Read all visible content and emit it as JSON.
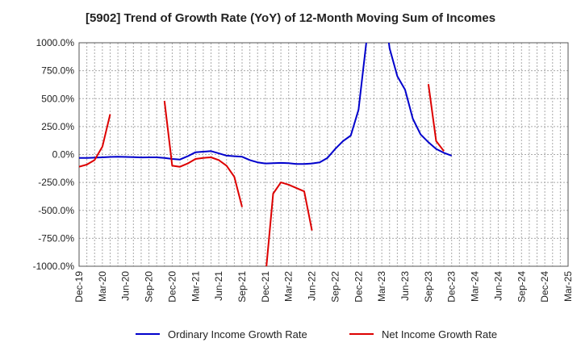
{
  "chart_data": {
    "type": "line",
    "title": "[5902]  Trend of Growth Rate (YoY) of 12-Month Moving Sum of Incomes",
    "xlabel": "",
    "ylabel": "",
    "ylim": [
      -1000,
      1000
    ],
    "yticks": [
      1000,
      750,
      500,
      250,
      0,
      -250,
      -500,
      -750,
      -1000
    ],
    "ytick_labels": [
      "1000.0%",
      "750.0%",
      "500.0%",
      "250.0%",
      "0.0%",
      "-250.0%",
      "-500.0%",
      "-750.0%",
      "-1000.0%"
    ],
    "xtick_labels": [
      "Dec-19",
      "Mar-20",
      "Jun-20",
      "Sep-20",
      "Dec-20",
      "Mar-21",
      "Jun-21",
      "Sep-21",
      "Dec-21",
      "Mar-22",
      "Jun-22",
      "Sep-22",
      "Dec-22",
      "Mar-23",
      "Jun-23",
      "Sep-23",
      "Dec-23",
      "Mar-24",
      "Jun-24",
      "Sep-24",
      "Dec-24",
      "Mar-25"
    ],
    "grid": true,
    "legend_position": "bottom",
    "series": [
      {
        "name": "Ordinary Income Growth Rate",
        "color": "#0000cc",
        "values": [
          -30,
          -30,
          -28,
          -25,
          -22,
          -20,
          -22,
          -24,
          -26,
          -25,
          -25,
          -30,
          -40,
          -45,
          -15,
          20,
          25,
          30,
          10,
          -10,
          -15,
          -20,
          -50,
          -70,
          -80,
          -78,
          -75,
          -78,
          -85,
          -85,
          -80,
          -70,
          -30,
          50,
          120,
          170,
          400,
          1000,
          1500,
          1500,
          950,
          700,
          580,
          320,
          180,
          110,
          50,
          15,
          -10,
          null,
          null,
          null,
          null,
          null,
          null,
          null,
          null,
          null,
          null,
          null,
          null,
          null,
          null,
          null,
          null
        ]
      },
      {
        "name": "Net Income Growth Rate",
        "color": "#dd0000",
        "values": [
          -110,
          -90,
          -50,
          70,
          360,
          null,
          null,
          null,
          null,
          null,
          null,
          480,
          -100,
          -110,
          -80,
          -40,
          -30,
          -25,
          -50,
          -100,
          -200,
          -470,
          null,
          null,
          -1100,
          -350,
          -250,
          -270,
          -300,
          -330,
          -680,
          null,
          null,
          null,
          null,
          null,
          null,
          null,
          null,
          null,
          null,
          null,
          null,
          null,
          null,
          630,
          120,
          30,
          null,
          null,
          null,
          null,
          null,
          null,
          null,
          null,
          null,
          null,
          null,
          null,
          null,
          null,
          null,
          null,
          null
        ]
      }
    ]
  }
}
